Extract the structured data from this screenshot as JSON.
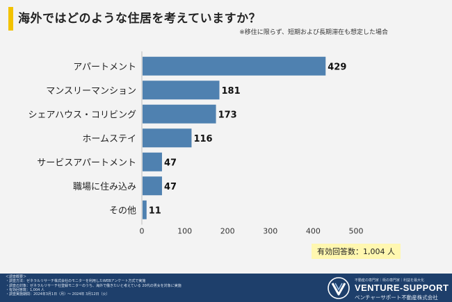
{
  "title": "海外ではどのような住居を考えていますか？",
  "subtitle": "※移住に限らず、短期および長期滞在も想定した場合",
  "respondents_note": "有効回答数：1,004 人",
  "colors": {
    "bar": "#4f81b0",
    "accent": "#f2c200",
    "footer": "#1e3f6b",
    "note_bg": "#fff7b0"
  },
  "chart_data": {
    "type": "bar",
    "orientation": "horizontal",
    "title": "海外ではどのような住居を考えていますか？",
    "categories": [
      "アパートメント",
      "マンスリーマンション",
      "シェアハウス・コリビング",
      "ホームステイ",
      "サービスアパートメント",
      "職場に住み込み",
      "その他"
    ],
    "values": [
      429,
      181,
      173,
      116,
      47,
      47,
      11
    ],
    "xlim": [
      0,
      500
    ],
    "xticks": [
      0,
      100,
      200,
      300,
      400,
      500
    ],
    "grid": false,
    "legend": "none"
  },
  "footer": {
    "survey_heading": "＜調査概要＞",
    "survey_lines": [
      "・調査方法：ゼネラルリサーチ株式会社のモニターを利用したWEBアンケート方式で実施",
      "・調査の対象：ゼネラルリサーチ社登録モニターのうち、海外で働きたいと考えている 20代の男女を対象に実施",
      "・有効回答数：1,004 人",
      "・調査実施期間：2024年3月1日（月）〜 2024年 3月12日（火）"
    ],
    "brand_tagline": "不動産の専門家｜街の専門家｜利益を最大化",
    "brand_name": "VENTURE-SUPPORT",
    "brand_sub": "ベンチャーサポート不動産株式会社"
  }
}
